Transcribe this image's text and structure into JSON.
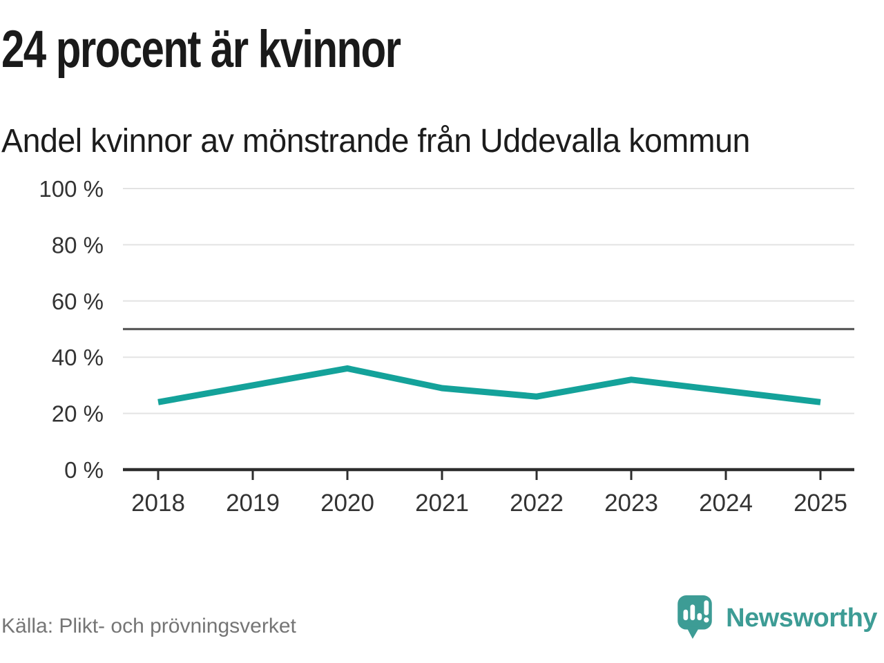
{
  "header": {
    "title": "24 procent är kvinnor",
    "subtitle": "Andel kvinnor av mönstrande från Uddevalla kommun"
  },
  "chart_data": {
    "type": "line",
    "title": "24 procent är kvinnor",
    "subtitle": "Andel kvinnor av mönstrande från Uddevalla kommun",
    "categories": [
      "2018",
      "2019",
      "2020",
      "2021",
      "2022",
      "2023",
      "2024",
      "2025"
    ],
    "series": [
      {
        "name": "Andel kvinnor av mönstrande",
        "values": [
          24,
          30,
          36,
          29,
          26,
          32,
          28,
          24
        ]
      }
    ],
    "unit": "%",
    "ylim": [
      0,
      100
    ],
    "yticks": [
      0,
      20,
      40,
      60,
      80,
      100
    ],
    "ytick_labels": [
      "0 %",
      "20 %",
      "40 %",
      "60 %",
      "80 %",
      "100 %"
    ],
    "reference_line": 50,
    "grid": true,
    "legend": "none",
    "colors": {
      "line": "#14a29a",
      "reference_line": "#5a5a5a",
      "gridline": "#e3e3e3",
      "axis": "#2d2d2d",
      "tick_label": "#333333"
    }
  },
  "footer": {
    "source": "Källa: Plikt- och prövningsverket",
    "brand": "Newsworthy",
    "brand_color": "#3d9c95"
  }
}
